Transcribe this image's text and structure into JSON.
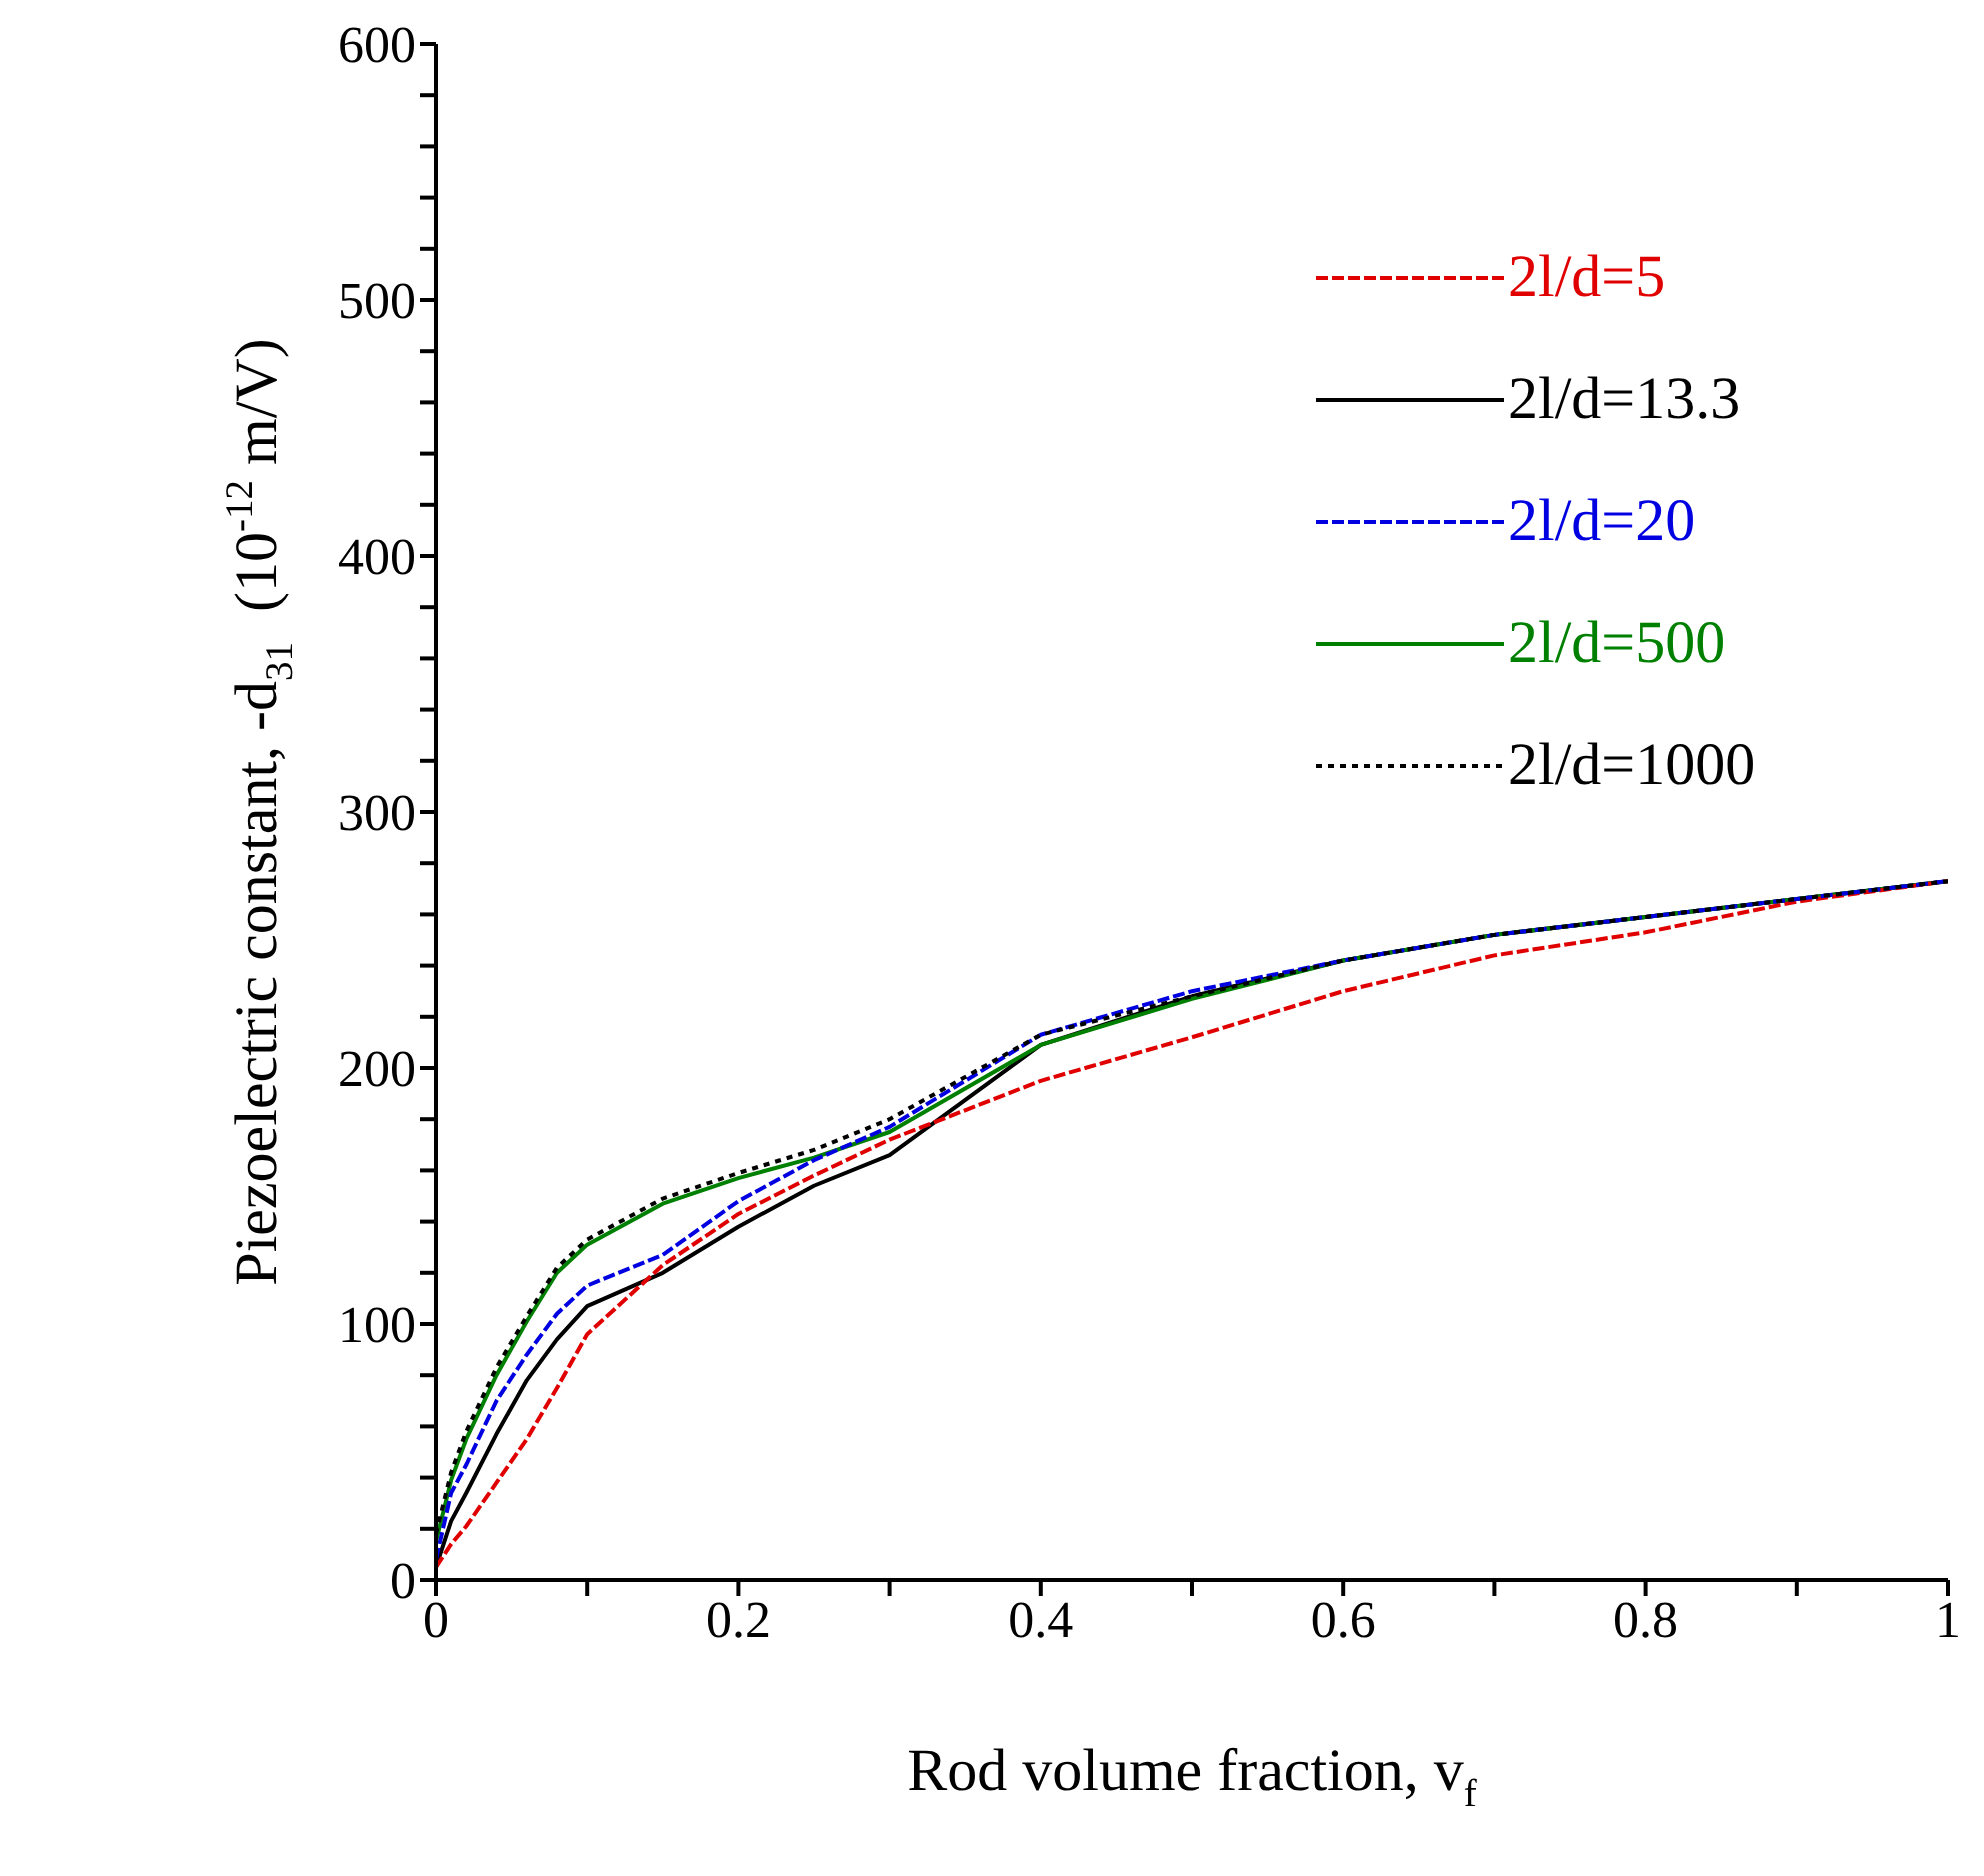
{
  "chart_data": {
    "type": "line",
    "xlabel": "Rod volume fraction, v$_{f}$",
    "ylabel": "Piezoelectric constant, -d$_{31}$  (10$^{-12}$ m/V)",
    "x": [
      0,
      0.01,
      0.02,
      0.04,
      0.06,
      0.08,
      0.1,
      0.15,
      0.2,
      0.25,
      0.3,
      0.4,
      0.5,
      0.6,
      0.7,
      0.8,
      0.9,
      1.0
    ],
    "series": [
      {
        "name": "2l/d=5",
        "color": "#e00000",
        "line_style": "dashed",
        "values": [
          5,
          14,
          21,
          38,
          55,
          75,
          96,
          123,
          143,
          158,
          172,
          195,
          212,
          230,
          244,
          253,
          265,
          273
        ]
      },
      {
        "name": "2l/d=13.3",
        "color": "#000000",
        "line_style": "solid",
        "values": [
          5,
          23,
          34,
          57,
          78,
          94,
          107,
          120,
          138,
          154,
          166,
          209,
          228,
          242,
          252,
          259,
          266,
          273
        ]
      },
      {
        "name": "2l/d=20",
        "color": "#0000e0",
        "line_style": "dashed",
        "values": [
          8,
          34,
          45,
          70,
          88,
          104,
          115,
          127,
          148,
          164,
          177,
          213,
          230,
          242,
          252,
          259,
          266,
          273
        ]
      },
      {
        "name": "2l/d=500",
        "color": "#008000",
        "line_style": "solid",
        "values": [
          15,
          39,
          55,
          80,
          101,
          120,
          131,
          147,
          157,
          165,
          175,
          209,
          227,
          242,
          252,
          259,
          266,
          273
        ]
      },
      {
        "name": "2l/d=1000",
        "color": "#000000",
        "line_style": "dotted",
        "values": [
          18,
          42,
          58,
          83,
          103,
          122,
          133,
          149,
          159,
          168,
          180,
          213,
          228,
          242,
          252,
          259,
          266,
          273
        ]
      }
    ],
    "xlim": [
      0,
      1
    ],
    "xticks": [
      0,
      {
        "value": 0.1,
        "label": null
      },
      0.2,
      {
        "value": 0.3,
        "label": null
      },
      0.4,
      {
        "value": 0.5,
        "label": null
      },
      0.6,
      {
        "value": 0.7,
        "label": null
      },
      0.8,
      {
        "value": 0.9,
        "label": null
      },
      1
    ],
    "ylim": [
      0,
      600
    ],
    "yticks": [
      0,
      {
        "value": 20,
        "label": null
      },
      {
        "value": 40,
        "label": null
      },
      {
        "value": 60,
        "label": null
      },
      {
        "value": 80,
        "label": null
      },
      100,
      {
        "value": 120,
        "label": null
      },
      {
        "value": 140,
        "label": null
      },
      {
        "value": 160,
        "label": null
      },
      {
        "value": 180,
        "label": null
      },
      200,
      {
        "value": 220,
        "label": null
      },
      {
        "value": 240,
        "label": null
      },
      {
        "value": 260,
        "label": null
      },
      {
        "value": 280,
        "label": null
      },
      300,
      {
        "value": 320,
        "label": null
      },
      {
        "value": 340,
        "label": null
      },
      {
        "value": 360,
        "label": null
      },
      {
        "value": 380,
        "label": null
      },
      400,
      {
        "value": 420,
        "label": null
      },
      {
        "value": 440,
        "label": null
      },
      {
        "value": 460,
        "label": null
      },
      {
        "value": 480,
        "label": null
      },
      500,
      {
        "value": 520,
        "label": null
      },
      {
        "value": 540,
        "label": null
      },
      {
        "value": 560,
        "label": null
      },
      {
        "value": 580,
        "label": null
      },
      600
    ],
    "grid": false,
    "legend": "top right",
    "marker": "none"
  }
}
